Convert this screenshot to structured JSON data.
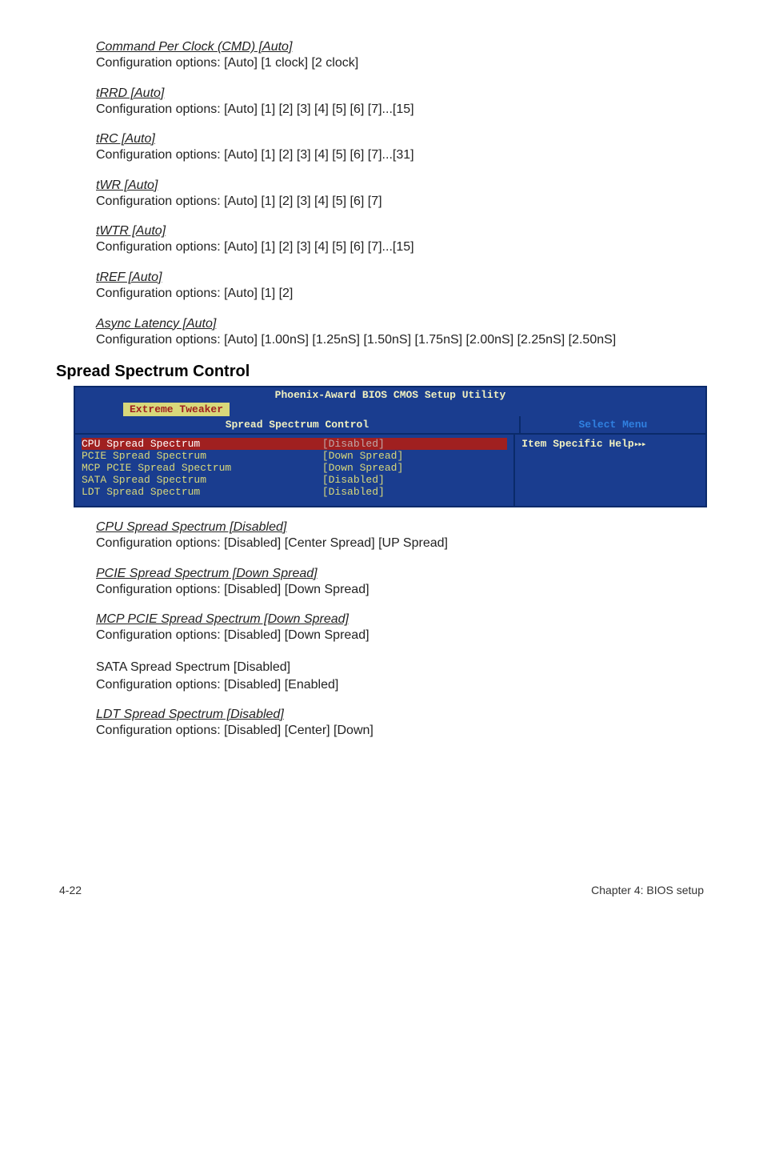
{
  "blocks": [
    {
      "title": "Command Per Clock (CMD) [Auto]",
      "text": "Configuration options: [Auto] [1 clock] [2 clock]"
    },
    {
      "title": "tRRD [Auto]",
      "text": "Configuration options: [Auto] [1] [2] [3] [4] [5] [6] [7]...[15]"
    },
    {
      "title": "tRC [Auto]",
      "text": "Configuration options: [Auto] [1] [2] [3] [4] [5] [6] [7]...[31]"
    },
    {
      "title": "tWR [Auto]",
      "text": "Configuration options: [Auto] [1] [2] [3] [4] [5] [6] [7]"
    },
    {
      "title": "tWTR [Auto]",
      "text": "Configuration options: [Auto] [1] [2] [3] [4] [5] [6] [7]...[15]"
    },
    {
      "title": "tREF [Auto]",
      "text": "Configuration options: [Auto] [1] [2]"
    },
    {
      "title": "Async Latency [Auto]",
      "text": "Configuration options: [Auto] [1.00nS] [1.25nS] [1.50nS] [1.75nS] [2.00nS] [2.25nS] [2.50nS]"
    }
  ],
  "section_heading": "Spread Spectrum Control",
  "bios": {
    "title": "Phoenix-Award BIOS CMOS Setup Utility",
    "tab": "Extreme Tweaker",
    "left_header": "Spread Spectrum Control",
    "right_header": "Select Menu",
    "help_label": "Item Specific Help",
    "rows": [
      {
        "key": "CPU Spread Spectrum",
        "val": "[Disabled]",
        "highlight": true
      },
      {
        "key": "PCIE Spread Spectrum",
        "val": "[Down Spread]",
        "highlight": false
      },
      {
        "key": "MCP PCIE Spread Spectrum",
        "val": "[Down Spread]",
        "highlight": false
      },
      {
        "key": "SATA Spread Spectrum",
        "val": "[Disabled]",
        "highlight": false
      },
      {
        "key": "LDT Spread Spectrum",
        "val": "[Disabled]",
        "highlight": false
      }
    ]
  },
  "lower_blocks": [
    {
      "title": "CPU Spread Spectrum [Disabled]",
      "text": "Configuration options: [Disabled] [Center Spread] [UP Spread]",
      "styled": true
    },
    {
      "title": "PCIE Spread Spectrum [Down Spread]",
      "text": "Configuration options: [Disabled] [Down Spread]",
      "styled": true
    },
    {
      "title": "MCP PCIE Spread Spectrum [Down Spread]",
      "text": "Configuration options: [Disabled] [Down Spread]",
      "styled": true
    },
    {
      "title": "SATA Spread Spectrum [Disabled]",
      "text": "Configuration options: [Disabled] [Enabled]",
      "styled": false
    },
    {
      "title": "LDT Spread Spectrum [Disabled]",
      "text": "Configuration options: [Disabled] [Center] [Down]",
      "styled": true
    }
  ],
  "footer": {
    "left": "4-22",
    "right": "Chapter 4: BIOS setup"
  }
}
